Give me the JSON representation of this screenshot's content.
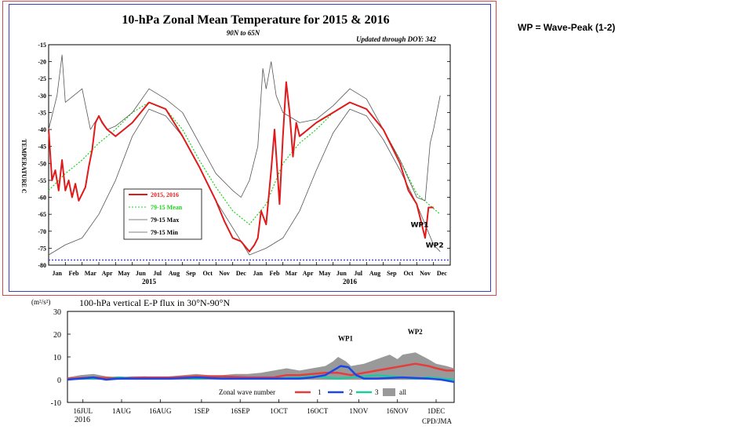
{
  "note": "WP = Wave-Peak (1-2)",
  "chart_data": [
    {
      "type": "line",
      "title": "10-hPa Zonal Mean Temperature for 2015 & 2016",
      "subtitle": "90N to 65N",
      "updated": "Updated through DOY: 342",
      "ylabel": "TEMPERATURE C",
      "ylim": [
        -80,
        -15
      ],
      "yticks": [
        -15,
        -20,
        -25,
        -30,
        -35,
        -40,
        -45,
        -50,
        -55,
        -60,
        -65,
        -70,
        -75,
        -80
      ],
      "xlim": [
        0,
        24
      ],
      "x_tick_labels": [
        "Jan",
        "Feb",
        "Mar",
        "Apr",
        "May",
        "Jun",
        "Jul",
        "Aug",
        "Sep",
        "Oct",
        "Nov",
        "Dec",
        "Jan",
        "Feb",
        "Mar",
        "Apr",
        "May",
        "Jun",
        "Jul",
        "Aug",
        "Sep",
        "Oct",
        "Nov",
        "Dec"
      ],
      "year_labels": [
        {
          "label": "2015",
          "x": 6
        },
        {
          "label": "2016",
          "x": 18
        }
      ],
      "reference_line": -78.5,
      "annotations": [
        {
          "text": "WP1",
          "x": 22.2,
          "y": -68.8
        },
        {
          "text": "WP2",
          "x": 23.1,
          "y": -74.8
        }
      ],
      "legend": [
        "2015, 2016",
        "79-15 Mean",
        "79-15 Max",
        "79-15 Min"
      ],
      "colors": {
        "obs": "#e01a1a",
        "mean": "#19d419",
        "max": "#555555",
        "min": "#555555",
        "ref": "#3333cc"
      },
      "series": [
        {
          "name": "79-15 Mean",
          "x": [
            0,
            1,
            2,
            3,
            4,
            5,
            6,
            7,
            8,
            9,
            10,
            11,
            12,
            13,
            14,
            15,
            16,
            17,
            18,
            19,
            20,
            21,
            22,
            23.4
          ],
          "y": [
            -58,
            -53,
            -49,
            -44,
            -40,
            -35,
            -32,
            -34,
            -40,
            -49,
            -57,
            -64,
            -68,
            -62,
            -50,
            -44,
            -40,
            -35,
            -32,
            -34,
            -40,
            -49,
            -59,
            -65
          ]
        },
        {
          "name": "79-15 Max",
          "x": [
            0,
            0.5,
            0.8,
            1,
            1.5,
            2,
            2.5,
            3,
            3.5,
            4,
            5,
            6,
            7,
            8,
            9,
            10,
            11,
            11.5,
            12,
            12.5,
            12.8,
            13,
            13.3,
            13.6,
            14,
            15,
            16,
            17,
            18,
            19,
            20,
            21,
            22,
            22.5,
            22.8,
            23,
            23.4
          ],
          "y": [
            -40,
            -30,
            -18,
            -32,
            -30,
            -28,
            -40,
            -36,
            -40,
            -39,
            -35,
            -28,
            -31,
            -35,
            -44,
            -53,
            -58,
            -60,
            -55,
            -45,
            -22,
            -28,
            -20,
            -30,
            -35,
            -38,
            -37,
            -33,
            -28,
            -31,
            -40,
            -49,
            -60,
            -61,
            -44,
            -40,
            -30
          ]
        },
        {
          "name": "79-15 Min",
          "x": [
            0,
            1,
            2,
            3,
            4,
            5,
            6,
            7,
            8,
            9,
            10,
            11,
            12,
            13,
            14,
            15,
            16,
            17,
            18,
            19,
            20,
            21,
            22,
            23,
            23.4
          ],
          "y": [
            -77,
            -74,
            -72,
            -65,
            -55,
            -42,
            -34,
            -36,
            -42,
            -51,
            -61,
            -69,
            -77,
            -75,
            -72,
            -64,
            -52,
            -41,
            -34,
            -36,
            -43,
            -52,
            -62,
            -74,
            -76
          ]
        },
        {
          "name": "2015, 2016",
          "x": [
            0,
            0.2,
            0.4,
            0.6,
            0.8,
            1,
            1.2,
            1.4,
            1.6,
            1.8,
            2,
            2.2,
            2.4,
            2.6,
            2.8,
            3,
            3.2,
            3.5,
            4,
            4.5,
            5,
            6,
            7,
            8,
            9,
            10,
            10.5,
            11,
            11.5,
            12,
            12.3,
            12.5,
            12.7,
            13,
            13.3,
            13.5,
            13.8,
            14,
            14.2,
            14.4,
            14.6,
            14.8,
            15,
            16,
            17,
            18,
            19,
            20,
            21,
            21.5,
            22,
            22.2,
            22.5,
            22.7,
            23
          ],
          "y": [
            -40,
            -55,
            -52,
            -58,
            -49,
            -58,
            -55,
            -60,
            -56,
            -61,
            -59,
            -57,
            -51,
            -46,
            -38,
            -36,
            -38,
            -40,
            -42,
            -40,
            -38,
            -32,
            -34,
            -42,
            -51,
            -61,
            -67,
            -72,
            -73,
            -76,
            -74,
            -72,
            -64,
            -68,
            -52,
            -40,
            -62,
            -42,
            -26,
            -35,
            -48,
            -38,
            -42,
            -38,
            -35,
            -32,
            -34,
            -40,
            -50,
            -58,
            -62,
            -66,
            -72,
            -63,
            -63
          ]
        }
      ]
    },
    {
      "type": "line",
      "title": "100-hPa vertical E-P flux in 30°N-90°N",
      "unit": "(m²/s²)",
      "credit": "CPD/JMA",
      "ylim": [
        -10,
        30
      ],
      "yticks": [
        30,
        20,
        10,
        0,
        -10
      ],
      "xlim": [
        0,
        150
      ],
      "x_ticks": [
        {
          "x": 6,
          "label": "16JUL"
        },
        {
          "x": 21,
          "label": "1AUG"
        },
        {
          "x": 36,
          "label": "16AUG"
        },
        {
          "x": 52,
          "label": "1SEP"
        },
        {
          "x": 67,
          "label": "16SEP"
        },
        {
          "x": 82,
          "label": "1OCT"
        },
        {
          "x": 97,
          "label": "16OCT"
        },
        {
          "x": 113,
          "label": "1NOV"
        },
        {
          "x": 128,
          "label": "16NOV"
        },
        {
          "x": 143,
          "label": "1DEC"
        }
      ],
      "year_label": "2016",
      "annotations": [
        {
          "text": "WP1",
          "x": 108,
          "y": 17
        },
        {
          "text": "WP2",
          "x": 135,
          "y": 20
        }
      ],
      "legend_title": "Zonal wave number",
      "legend": [
        "1",
        "2",
        "3",
        "all"
      ],
      "colors": {
        "w1": "#e63c3c",
        "w2": "#1e46e6",
        "w3": "#1ec8a0",
        "all": "#999999"
      },
      "series": [
        {
          "name": "all",
          "x": [
            0,
            5,
            10,
            15,
            20,
            25,
            30,
            35,
            40,
            45,
            50,
            55,
            60,
            65,
            70,
            75,
            80,
            85,
            90,
            95,
            100,
            103,
            105,
            108,
            110,
            115,
            120,
            125,
            128,
            130,
            135,
            140,
            143,
            147,
            150
          ],
          "y": [
            1,
            2,
            2.5,
            1.5,
            1,
            1.5,
            1.5,
            1,
            1.5,
            2,
            2.5,
            2,
            2,
            2.5,
            2.5,
            3,
            4,
            5,
            4,
            5,
            6,
            8,
            10,
            8,
            6,
            7,
            9,
            11,
            9,
            11,
            12,
            9,
            7,
            6,
            5
          ]
        },
        {
          "name": "1",
          "x": [
            0,
            10,
            20,
            30,
            40,
            50,
            60,
            70,
            80,
            85,
            90,
            95,
            100,
            105,
            110,
            115,
            120,
            125,
            130,
            135,
            140,
            143,
            147,
            150
          ],
          "y": [
            0.5,
            1,
            0.5,
            1,
            1,
            1.5,
            1.5,
            1,
            1,
            2,
            2,
            2.5,
            3,
            3,
            2,
            3,
            4,
            5,
            6,
            7,
            6,
            5,
            4,
            4
          ]
        },
        {
          "name": "2",
          "x": [
            0,
            5,
            10,
            15,
            20,
            30,
            40,
            50,
            60,
            70,
            80,
            90,
            95,
            100,
            103,
            106,
            109,
            112,
            115,
            120,
            130,
            140,
            145,
            150
          ],
          "y": [
            0,
            0.5,
            1,
            0,
            0.5,
            0.5,
            0.5,
            1,
            0.5,
            0.5,
            0.5,
            0.5,
            1,
            2,
            4,
            6,
            5.5,
            2,
            0.5,
            0.5,
            1,
            0.5,
            0,
            -1
          ]
        },
        {
          "name": "3",
          "x": [
            0,
            10,
            20,
            30,
            40,
            50,
            60,
            70,
            80,
            90,
            95,
            100,
            105,
            110,
            115,
            120,
            125,
            130,
            135,
            140,
            145,
            150
          ],
          "y": [
            0.5,
            0.5,
            1,
            0.5,
            1,
            0.5,
            1,
            0.5,
            0.5,
            1,
            1.5,
            1,
            0.5,
            1,
            1.5,
            2,
            1.5,
            1,
            0.5,
            1,
            0.5,
            0
          ]
        }
      ]
    }
  ]
}
